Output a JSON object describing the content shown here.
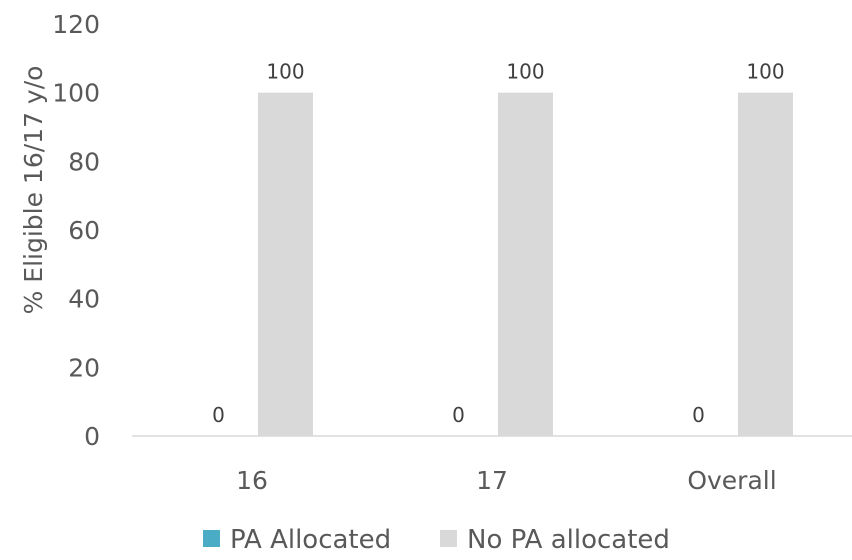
{
  "chart_data": {
    "type": "bar",
    "title": "",
    "xlabel": "",
    "ylabel": "% Eligible 16/17 y/o",
    "categories": [
      "16",
      "17",
      "Overall"
    ],
    "series": [
      {
        "name": "PA Allocated",
        "values": [
          0,
          0,
          0
        ],
        "color": "#4bacc6"
      },
      {
        "name": "No PA allocated",
        "values": [
          100,
          100,
          100
        ],
        "color": "#d9d9d9"
      }
    ],
    "ylim": [
      0,
      120
    ],
    "yticks": [
      0,
      20,
      40,
      60,
      80,
      100,
      120
    ],
    "data_labels": true,
    "grid": false,
    "legend_position": "bottom"
  }
}
